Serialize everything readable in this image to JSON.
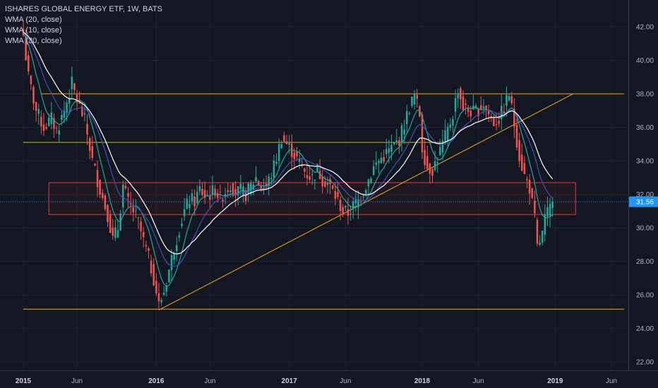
{
  "legend": {
    "title": "ISHARES GLOBAL ENERGY ETF, 1W, BATS",
    "ind1": "WMA (20, close)",
    "ind2": "WMA (10, close)",
    "ind3": "WMA (30, close)"
  },
  "colors": {
    "background": "#131722",
    "grid": "#1e222d",
    "up": "#26a69a",
    "down": "#ef5350",
    "orange_line": "#f5a623",
    "yellow_line": "#c9b223",
    "rect_border": "#e53935",
    "wma10": "#26a69a",
    "wma20": "#3f51b5",
    "wma30": "#ffffff",
    "price_tag": "#2196f3"
  },
  "price_tag": {
    "label": "31.56",
    "value": 31.56
  },
  "chart_data": {
    "type": "candlestick",
    "title": "ISHARES GLOBAL ENERGY ETF, 1W, BATS",
    "ylim": [
      21.5,
      43.6
    ],
    "y_ticks": [
      "42.00",
      "40.00",
      "38.00",
      "36.00",
      "34.00",
      "32.00",
      "30.00",
      "28.00",
      "26.00",
      "24.00",
      "22.00"
    ],
    "x_ticks": [
      {
        "label": "2015",
        "bold": true
      },
      {
        "label": "Jun",
        "bold": false
      },
      {
        "label": "2016",
        "bold": true
      },
      {
        "label": "Jun",
        "bold": false
      },
      {
        "label": "2017",
        "bold": true
      },
      {
        "label": "Jun",
        "bold": false
      },
      {
        "label": "2018",
        "bold": true
      },
      {
        "label": "Jun",
        "bold": false
      },
      {
        "label": "2019",
        "bold": true
      },
      {
        "label": "Jun",
        "bold": false
      }
    ],
    "x_tick_weeks": [
      0,
      21,
      52,
      73,
      104,
      126,
      156,
      178,
      208,
      230
    ],
    "weeks_total": 235,
    "close_path": [
      [
        0,
        41.5
      ],
      [
        2,
        39.0
      ],
      [
        5,
        37.0
      ],
      [
        8,
        36.0
      ],
      [
        11,
        36.5
      ],
      [
        13,
        35.8
      ],
      [
        16,
        37.0
      ],
      [
        19,
        38.6
      ],
      [
        21,
        37.6
      ],
      [
        24,
        36.4
      ],
      [
        27,
        34.0
      ],
      [
        30,
        32.3
      ],
      [
        33,
        30.8
      ],
      [
        35,
        29.3
      ],
      [
        37,
        30.0
      ],
      [
        39,
        32.5
      ],
      [
        41,
        31.5
      ],
      [
        43,
        31.0
      ],
      [
        45,
        30.3
      ],
      [
        47,
        29.2
      ],
      [
        49,
        28.2
      ],
      [
        51,
        27.0
      ],
      [
        53,
        25.4
      ],
      [
        55,
        26.2
      ],
      [
        57,
        27.5
      ],
      [
        59,
        28.8
      ],
      [
        61,
        30.0
      ],
      [
        63,
        31.0
      ],
      [
        65,
        31.7
      ],
      [
        67,
        31.6
      ],
      [
        69,
        32.3
      ],
      [
        71,
        31.9
      ],
      [
        73,
        32.0
      ],
      [
        75,
        32.3
      ],
      [
        77,
        31.7
      ],
      [
        79,
        32.2
      ],
      [
        81,
        32.6
      ],
      [
        83,
        32.1
      ],
      [
        85,
        32.2
      ],
      [
        87,
        32.0
      ],
      [
        89,
        32.5
      ],
      [
        91,
        33.0
      ],
      [
        93,
        32.4
      ],
      [
        95,
        32.5
      ],
      [
        97,
        33.2
      ],
      [
        99,
        34.2
      ],
      [
        101,
        35.4
      ],
      [
        103,
        35.0
      ],
      [
        105,
        34.6
      ],
      [
        107,
        34.1
      ],
      [
        109,
        33.6
      ],
      [
        111,
        33.2
      ],
      [
        113,
        33.0
      ],
      [
        115,
        33.5
      ],
      [
        117,
        32.9
      ],
      [
        119,
        32.7
      ],
      [
        121,
        32.2
      ],
      [
        123,
        31.6
      ],
      [
        125,
        31.0
      ],
      [
        127,
        30.9
      ],
      [
        129,
        31.3
      ],
      [
        131,
        31.6
      ],
      [
        133,
        32.2
      ],
      [
        135,
        32.9
      ],
      [
        137,
        33.6
      ],
      [
        139,
        34.0
      ],
      [
        141,
        34.3
      ],
      [
        143,
        34.6
      ],
      [
        145,
        34.9
      ],
      [
        147,
        35.3
      ],
      [
        149,
        36.2
      ],
      [
        151,
        37.2
      ],
      [
        153,
        37.9
      ],
      [
        155,
        36.8
      ],
      [
        156,
        34.8
      ],
      [
        158,
        33.6
      ],
      [
        160,
        33.5
      ],
      [
        162,
        34.2
      ],
      [
        164,
        35.0
      ],
      [
        166,
        35.8
      ],
      [
        168,
        36.8
      ],
      [
        170,
        38.3
      ],
      [
        172,
        37.2
      ],
      [
        174,
        37.0
      ],
      [
        176,
        36.9
      ],
      [
        178,
        37.1
      ],
      [
        180,
        37.4
      ],
      [
        182,
        36.8
      ],
      [
        184,
        36.3
      ],
      [
        186,
        36.5
      ],
      [
        188,
        37.2
      ],
      [
        190,
        38.0
      ],
      [
        192,
        36.2
      ],
      [
        194,
        34.3
      ],
      [
        196,
        33.1
      ],
      [
        198,
        32.4
      ],
      [
        200,
        30.5
      ],
      [
        201,
        28.8
      ],
      [
        203,
        29.6
      ],
      [
        204,
        30.5
      ],
      [
        206,
        31.2
      ],
      [
        207,
        31.56
      ]
    ],
    "series": [
      {
        "name": "WMA (10, close)",
        "period": 10
      },
      {
        "name": "WMA (20, close)",
        "period": 20
      },
      {
        "name": "WMA (30, close)",
        "period": 30
      }
    ],
    "annotations": {
      "horizontal_lines": [
        {
          "value": 38.0,
          "from_week": 7,
          "to_week": 235,
          "color": "orange"
        },
        {
          "value": 35.1,
          "from_week": 0,
          "to_week": 163,
          "color": "yellow"
        },
        {
          "value": 25.15,
          "from_week": 0,
          "to_week": 235,
          "color": "orange"
        }
      ],
      "trendline": {
        "from": [
          53,
          25.1
        ],
        "to": [
          215,
          38.0
        ]
      },
      "rectangle": {
        "from_week": 10,
        "to_week": 216,
        "top": 32.7,
        "bottom": 30.8
      }
    }
  }
}
